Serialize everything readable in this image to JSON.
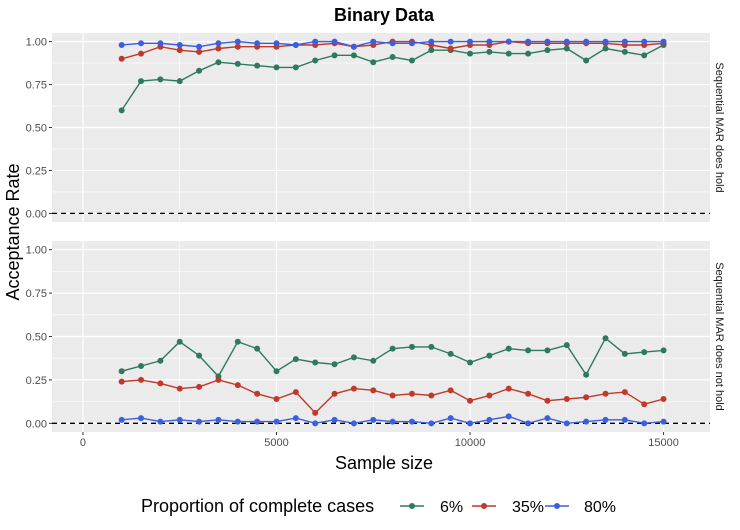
{
  "chart_data": {
    "type": "line",
    "title": "Binary Data",
    "xlabel": "Sample size",
    "ylabel": "Acceptance Rate",
    "xlim": [
      -800,
      16200
    ],
    "ylim": [
      -0.05,
      1.05
    ],
    "x_ticks": [
      0,
      5000,
      10000,
      15000
    ],
    "x_tick_labels": [
      "0",
      "5000",
      "10000",
      "15000"
    ],
    "y_ticks": [
      0,
      0.25,
      0.5,
      0.75,
      1
    ],
    "y_tick_labels": [
      "0.00",
      "0.25",
      "0.50",
      "0.75",
      "1.00"
    ],
    "reference_line_y": 0,
    "grid": true,
    "legend": {
      "title": "Proportion of complete cases",
      "placement": "bottom",
      "entries": [
        "6%",
        "35%",
        "80%"
      ]
    },
    "x": [
      1000,
      1500,
      2000,
      2500,
      3000,
      3500,
      4000,
      4500,
      5000,
      5500,
      6000,
      6500,
      7000,
      7500,
      8000,
      8500,
      9000,
      9500,
      10000,
      10500,
      11000,
      11500,
      12000,
      12500,
      13000,
      13500,
      14000,
      14500,
      15000
    ],
    "panels": [
      {
        "strip_label": "Sequential MAR does hold",
        "series": [
          {
            "name": "6%",
            "color": "#2e7a5c",
            "values": [
              0.6,
              0.77,
              0.78,
              0.77,
              0.83,
              0.88,
              0.87,
              0.86,
              0.85,
              0.85,
              0.89,
              0.92,
              0.92,
              0.88,
              0.91,
              0.89,
              0.95,
              0.95,
              0.93,
              0.94,
              0.93,
              0.93,
              0.95,
              0.96,
              0.89,
              0.96,
              0.94,
              0.92,
              0.98
            ]
          },
          {
            "name": "35%",
            "color": "#c0392b",
            "values": [
              0.9,
              0.93,
              0.97,
              0.95,
              0.94,
              0.96,
              0.97,
              0.97,
              0.97,
              0.98,
              0.98,
              0.99,
              0.97,
              0.98,
              1.0,
              1.0,
              0.98,
              0.96,
              0.98,
              0.98,
              1.0,
              0.99,
              0.99,
              0.99,
              0.99,
              0.99,
              0.98,
              0.98,
              0.99
            ]
          },
          {
            "name": "80%",
            "color": "#3b5fe0",
            "values": [
              0.98,
              0.99,
              0.99,
              0.98,
              0.97,
              0.99,
              1.0,
              0.99,
              0.99,
              0.98,
              1.0,
              1.0,
              0.97,
              1.0,
              0.99,
              0.99,
              1.0,
              1.0,
              1.0,
              1.0,
              1.0,
              1.0,
              1.0,
              1.0,
              1.0,
              1.0,
              1.0,
              1.0,
              1.0
            ]
          }
        ]
      },
      {
        "strip_label": "Sequential MAR does not hold",
        "series": [
          {
            "name": "6%",
            "color": "#2e7a5c",
            "values": [
              0.3,
              0.33,
              0.36,
              0.47,
              0.39,
              0.27,
              0.47,
              0.43,
              0.3,
              0.37,
              0.35,
              0.34,
              0.38,
              0.36,
              0.43,
              0.44,
              0.44,
              0.4,
              0.35,
              0.39,
              0.43,
              0.42,
              0.42,
              0.45,
              0.28,
              0.49,
              0.4,
              0.41,
              0.42
            ]
          },
          {
            "name": "35%",
            "color": "#c0392b",
            "values": [
              0.24,
              0.25,
              0.23,
              0.2,
              0.21,
              0.25,
              0.22,
              0.17,
              0.14,
              0.18,
              0.06,
              0.17,
              0.2,
              0.19,
              0.16,
              0.17,
              0.16,
              0.19,
              0.13,
              0.16,
              0.2,
              0.17,
              0.13,
              0.14,
              0.15,
              0.17,
              0.18,
              0.11,
              0.14
            ]
          },
          {
            "name": "80%",
            "color": "#3b5fe0",
            "values": [
              0.02,
              0.03,
              0.01,
              0.02,
              0.01,
              0.02,
              0.01,
              0.01,
              0.01,
              0.03,
              0.0,
              0.02,
              0.0,
              0.02,
              0.01,
              0.01,
              0.0,
              0.03,
              0.0,
              0.02,
              0.04,
              0.0,
              0.03,
              0.0,
              0.01,
              0.02,
              0.02,
              0.0,
              0.01
            ]
          }
        ]
      }
    ]
  }
}
